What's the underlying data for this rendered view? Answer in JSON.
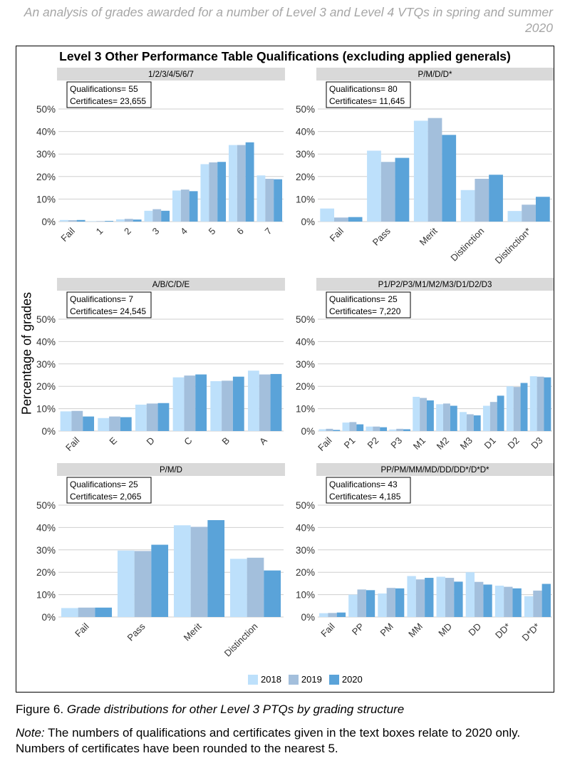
{
  "header": "An analysis of grades awarded for a number of Level 3 and Level 4 VTQs in spring and summer 2020",
  "figure_title": "Level 3 Other Performance Table Qualifications (excluding applied generals)",
  "ylabel": "Percentage of grades",
  "legend": [
    {
      "name": "2018",
      "color": "#bde0fb"
    },
    {
      "name": "2019",
      "color": "#a3bfdc"
    },
    {
      "name": "2020",
      "color": "#5aa3d9"
    }
  ],
  "caption_prefix": "Figure 6.",
  "caption_text": "Grade distributions for other Level 3 PTQs by grading structure",
  "note_label": "Note:",
  "note_text": "The numbers of qualifications and certificates given in the text boxes relate to 2020 only. Numbers of certificates have been rounded to the nearest 5.",
  "chart_data": [
    {
      "type": "bar",
      "panel": "1/2/3/4/5/6/7",
      "qualifications": "Qualifications= 55",
      "certificates": "Certificates= 23,655",
      "categories": [
        "Fail",
        "1",
        "2",
        "3",
        "4",
        "5",
        "6",
        "7"
      ],
      "ylim": [
        0,
        50
      ],
      "yticks": [
        "0%",
        "10%",
        "20%",
        "30%",
        "40%",
        "50%"
      ],
      "series": [
        {
          "name": "2018",
          "values": [
            0.7,
            0.2,
            1.0,
            4.8,
            13.8,
            25.5,
            34.0,
            20.5
          ]
        },
        {
          "name": "2019",
          "values": [
            0.6,
            0.2,
            1.2,
            5.5,
            14.2,
            26.3,
            34.0,
            19.0
          ]
        },
        {
          "name": "2020",
          "values": [
            0.7,
            0.3,
            0.9,
            4.8,
            13.5,
            26.5,
            35.2,
            18.8
          ]
        }
      ]
    },
    {
      "type": "bar",
      "panel": "P/M/D/D*",
      "qualifications": "Qualifications= 80",
      "certificates": "Certificates= 11,645",
      "categories": [
        "Fail",
        "Pass",
        "Merit",
        "Distinction",
        "Distinction*"
      ],
      "ylim": [
        0,
        50
      ],
      "yticks": [
        "0%",
        "10%",
        "20%",
        "30%",
        "40%",
        "50%"
      ],
      "series": [
        {
          "name": "2018",
          "values": [
            5.8,
            31.5,
            44.8,
            14.0,
            4.7
          ]
        },
        {
          "name": "2019",
          "values": [
            1.8,
            26.5,
            46.0,
            19.0,
            7.5
          ]
        },
        {
          "name": "2020",
          "values": [
            2.0,
            28.3,
            38.5,
            20.8,
            11.0
          ]
        }
      ]
    },
    {
      "type": "bar",
      "panel": "A/B/C/D/E",
      "qualifications": "Qualifications= 7",
      "certificates": "Certificates= 24,545",
      "categories": [
        "Fail",
        "E",
        "D",
        "C",
        "B",
        "A"
      ],
      "ylim": [
        0,
        50
      ],
      "yticks": [
        "0%",
        "10%",
        "20%",
        "30%",
        "40%",
        "50%"
      ],
      "series": [
        {
          "name": "2018",
          "values": [
            8.8,
            5.8,
            11.8,
            24.0,
            22.3,
            27.0
          ]
        },
        {
          "name": "2019",
          "values": [
            9.0,
            6.5,
            12.3,
            24.8,
            22.5,
            25.3
          ]
        },
        {
          "name": "2020",
          "values": [
            6.5,
            6.2,
            12.5,
            25.3,
            24.3,
            25.5
          ]
        }
      ]
    },
    {
      "type": "bar",
      "panel": "P1/P2/P3/M1/M2/M3/D1/D2/D3",
      "qualifications": "Qualifications= 25",
      "certificates": "Certificates= 7,220",
      "categories": [
        "Fail",
        "P1",
        "P2",
        "P3",
        "M1",
        "M2",
        "M3",
        "D1",
        "D2",
        "D3"
      ],
      "ylim": [
        0,
        50
      ],
      "yticks": [
        "0%",
        "10%",
        "20%",
        "30%",
        "40%",
        "50%"
      ],
      "series": [
        {
          "name": "2018",
          "values": [
            0.8,
            3.8,
            2.0,
            0.7,
            15.3,
            12.0,
            8.5,
            11.3,
            20.0,
            24.5
          ]
        },
        {
          "name": "2019",
          "values": [
            1.0,
            4.0,
            2.0,
            1.0,
            14.8,
            12.3,
            7.5,
            13.0,
            19.7,
            24.3
          ]
        },
        {
          "name": "2020",
          "values": [
            0.5,
            3.0,
            1.7,
            0.8,
            13.7,
            11.3,
            7.0,
            15.8,
            21.5,
            24.0
          ]
        }
      ]
    },
    {
      "type": "bar",
      "panel": "P/M/D",
      "qualifications": "Qualifications= 25",
      "certificates": "Certificates= 2,065",
      "categories": [
        "Fail",
        "Pass",
        "Merit",
        "Distinction"
      ],
      "ylim": [
        0,
        50
      ],
      "yticks": [
        "0%",
        "10%",
        "20%",
        "30%",
        "40%",
        "50%"
      ],
      "series": [
        {
          "name": "2018",
          "values": [
            4.0,
            29.7,
            41.0,
            26.0
          ]
        },
        {
          "name": "2019",
          "values": [
            4.2,
            29.5,
            40.3,
            26.5
          ]
        },
        {
          "name": "2020",
          "values": [
            4.2,
            32.3,
            43.3,
            20.8
          ]
        }
      ]
    },
    {
      "type": "bar",
      "panel": "PP/PM/MM/MD/DD/DD*/D*D*",
      "qualifications": "Qualifications= 43",
      "certificates": "Certificates= 4,185",
      "categories": [
        "Fail",
        "PP",
        "PM",
        "MM",
        "MD",
        "DD",
        "DD*",
        "D*D*"
      ],
      "ylim": [
        0,
        50
      ],
      "yticks": [
        "0%",
        "10%",
        "20%",
        "30%",
        "40%",
        "50%"
      ],
      "series": [
        {
          "name": "2018",
          "values": [
            1.7,
            10.0,
            10.5,
            18.3,
            18.0,
            20.0,
            14.0,
            9.3
          ]
        },
        {
          "name": "2019",
          "values": [
            1.8,
            12.3,
            13.0,
            16.8,
            17.5,
            15.7,
            13.5,
            11.8
          ]
        },
        {
          "name": "2020",
          "values": [
            2.0,
            12.0,
            12.8,
            17.5,
            15.8,
            14.5,
            12.8,
            14.8
          ]
        }
      ]
    }
  ]
}
